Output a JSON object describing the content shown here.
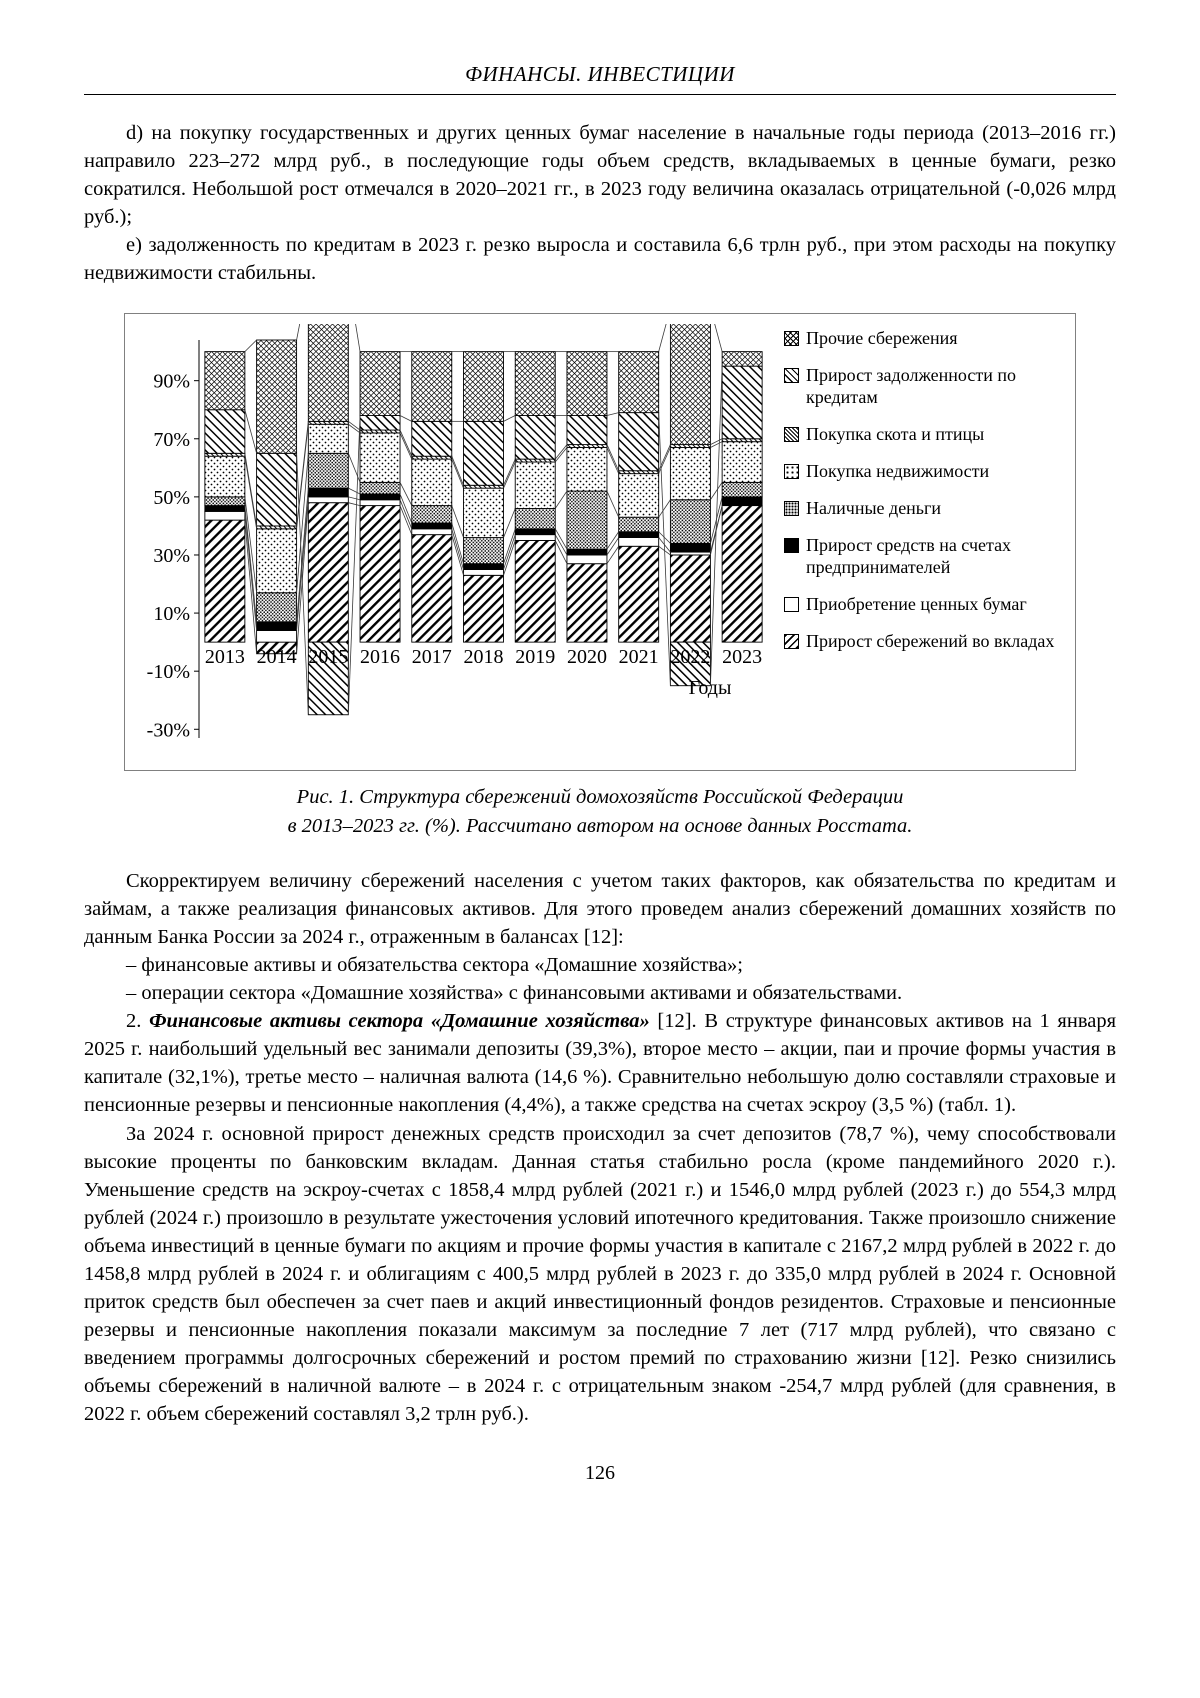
{
  "header": {
    "title": "ФИНАНСЫ. ИНВЕСТИЦИИ"
  },
  "body_text": {
    "p1": "d) на покупку государственных и других ценных бумаг население в начальные годы периода (2013–2016 гг.) направило 223–272 млрд руб., в последующие годы объем средств, вкладываемых в ценные бумаги, резко сократился. Небольшой рост отмечался в 2020–2021 гг., в 2023 году величина оказалась отрицательной (-0,026 млрд руб.);",
    "p2": "е) задолженность по кредитам в 2023 г. резко выросла и составила 6,6 трлн руб., при этом расходы на покупку недвижимости стабильны.",
    "p3": "Скорректируем величину сбережений населения с учетом таких факторов, как обязательства по кредитам и займам, а также реализация финансовых активов. Для этого проведем анализ сбережений домашних хозяйств по данным Банка России за 2024 г., отраженным в балансах [12]:",
    "list1": "– финансовые активы и обязательства сектора «Домашние хозяйства»;",
    "list2": "– операции сектора «Домашние хозяйства» с финансовыми активами и обязательствами.",
    "p4_num": "2. ",
    "p4_bold": "Финансовые активы сектора «Домашние хозяйства»",
    "p4_rest": " [12]. В структуре финансовых активов на 1 января 2025 г. наибольший удельный вес занимали депозиты (39,3%), второе место – акции, паи и прочие формы участия в капитале (32,1%), третье место – наличная валюта (14,6 %). Сравнительно небольшую долю составляли страховые и пенсионные резервы и пенсионные накопления (4,4%), а также средства на счетах эскроу (3,5 %) (табл. 1).",
    "p5": "За 2024 г. основной прирост денежных средств происходил за счет депозитов (78,7 %), чему способствовали высокие проценты по банковским вкладам. Данная статья стабильно росла (кроме пандемийного 2020 г.). Уменьшение средств на эскроу-счетах с 1858,4 млрд рублей (2021 г.) и 1546,0 млрд рублей (2023 г.) до 554,3 млрд рублей (2024 г.) произошло в результате ужесточения условий ипотечного кредитования. Также произошло снижение объема инвестиций в ценные бумаги по акциям и прочие формы участия в капитале с 2167,2 млрд рублей в 2022 г. до 1458,8 млрд рублей в 2024 г. и облигациям с 400,5 млрд рублей в 2023 г. до 335,0 млрд рублей в 2024 г. Основной приток средств был обеспечен за счет паев и акций инвестиционный фондов резидентов. Страховые и пенсионные резервы и пенсионные накопления показали максимум за последние 7 лет (717 млрд рублей), что связано с введением программы долгосрочных сбережений и ростом премий по страхованию жизни [12]. Резко снизились объемы сбережений в наличной валюте – в 2024 г. с отрицательным знаком -254,7 млрд рублей (для сравнения, в 2022 г. объем сбережений составлял 3,2 трлн руб.)."
  },
  "figure": {
    "caption1": "Рис. 1. Структура сбережений домохозяйств Российской Федерации",
    "caption2": "в 2013–2023 гг. (%). Рассчитано автором на основе данных Росстата."
  },
  "page_number": "126",
  "chart_data": {
    "type": "bar",
    "stacked": true,
    "title": "",
    "xlabel": "Годы",
    "ylabel": "",
    "ylim": [
      -30,
      100
    ],
    "grid": false,
    "legend_position": "right",
    "yticks": [
      {
        "v": 90,
        "label": "90%"
      },
      {
        "v": 70,
        "label": "70%"
      },
      {
        "v": 50,
        "label": "50%"
      },
      {
        "v": 30,
        "label": "30%"
      },
      {
        "v": 10,
        "label": "10%"
      },
      {
        "v": -10,
        "label": "-10%"
      },
      {
        "v": -30,
        "label": "-30%"
      }
    ],
    "categories": [
      "2013",
      "2014",
      "2015",
      "2016",
      "2017",
      "2018",
      "2019",
      "2020",
      "2021",
      "2022",
      "2023"
    ],
    "series": [
      {
        "name": "Прирост сбережений во вкладах",
        "pattern": "fwd",
        "values": [
          42,
          -4,
          48,
          47,
          37,
          23,
          35,
          27,
          33,
          30,
          47
        ]
      },
      {
        "name": "Приобретение ценных бумаг",
        "pattern": "white",
        "values": [
          3,
          4,
          2,
          2,
          2,
          2,
          2,
          3,
          3,
          1,
          0
        ]
      },
      {
        "name": "Прирост средств на счетах предпринимателей",
        "pattern": "black",
        "values": [
          2,
          3,
          3,
          2,
          2,
          2,
          2,
          2,
          2,
          3,
          3
        ]
      },
      {
        "name": "Наличные деньги",
        "pattern": "dot-dense",
        "values": [
          3,
          10,
          12,
          4,
          6,
          9,
          7,
          20,
          5,
          15,
          5
        ]
      },
      {
        "name": "Покупка недвижимости",
        "pattern": "dot-light",
        "values": [
          14,
          22,
          10,
          17,
          16,
          17,
          16,
          15,
          15,
          18,
          14
        ]
      },
      {
        "name": "Покупка скота и птицы",
        "pattern": "dense",
        "values": [
          1,
          1,
          1,
          1,
          1,
          1,
          1,
          1,
          1,
          1,
          1
        ]
      },
      {
        "name": "Прирост задолженности по кредитам",
        "pattern": "back",
        "values": [
          15,
          25,
          -25,
          5,
          12,
          22,
          15,
          10,
          20,
          -15,
          25
        ]
      },
      {
        "name": "Прочие сбережения",
        "pattern": "cross",
        "values": [
          20,
          39,
          49,
          22,
          24,
          24,
          22,
          22,
          21,
          47,
          5
        ]
      }
    ],
    "legend": [
      {
        "label": "Прочие сбережения",
        "pattern": "cross"
      },
      {
        "label": "Прирост задолженности по кредитам",
        "pattern": "back"
      },
      {
        "label": "Покупка скота и птицы",
        "pattern": "dense"
      },
      {
        "label": "Покупка недвижимости",
        "pattern": "dot-light"
      },
      {
        "label": "Наличные деньги",
        "pattern": "dot-dense"
      },
      {
        "label": "Прирост средств на счетах предпринимателей",
        "pattern": "black"
      },
      {
        "label": "Приобретение ценных бумаг",
        "pattern": "white"
      },
      {
        "label": "Прирост сбережений во вкладах",
        "pattern": "fwd"
      }
    ]
  }
}
